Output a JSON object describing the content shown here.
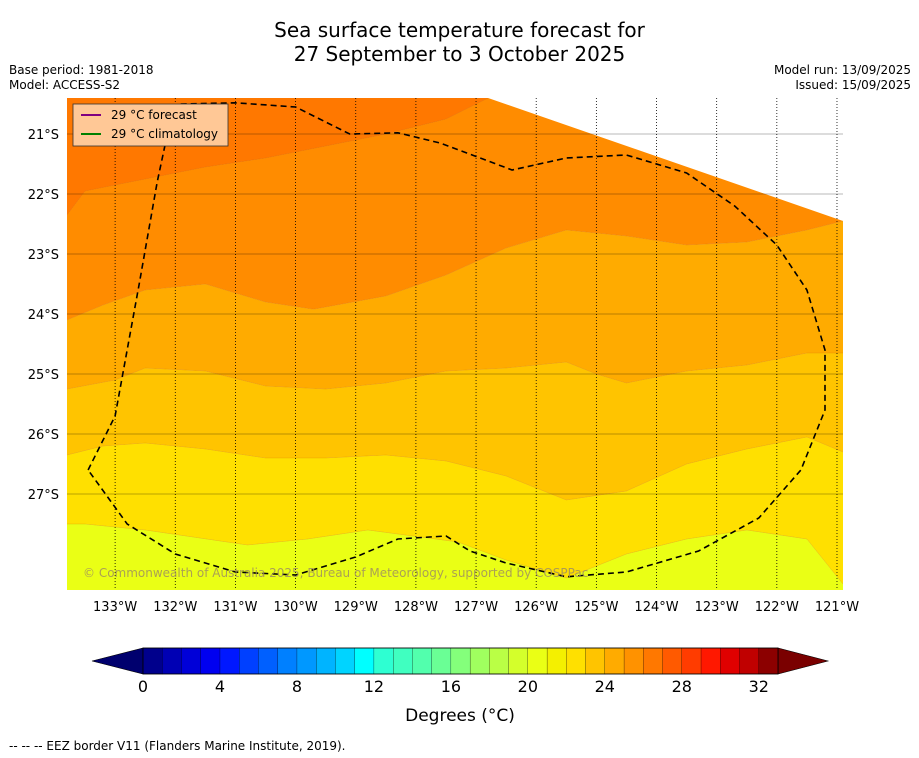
{
  "header": {
    "title_line1": "Sea surface temperature forecast for",
    "title_line2": "27 September to 3 October 2025",
    "base_period": "Base period: 1981-2018",
    "model": "Model: ACCESS-S2",
    "model_run": "Model run: 13/09/2025",
    "issued": "Issued: 15/09/2025"
  },
  "footer": {
    "eez_note": "--  --  -- EEZ border V11 (Flanders Marine Institute, 2019)."
  },
  "copyright": "© Commonwealth of Australia 2025, Bureau of Meteorology, supported by COSPPac",
  "chart_data": {
    "type": "heatmap",
    "variable": "Sea surface temperature forecast",
    "x_ticks": [
      "133°W",
      "132°W",
      "131°W",
      "130°W",
      "129°W",
      "128°W",
      "127°W",
      "126°W",
      "125°W",
      "124°W",
      "123°W",
      "122°W",
      "121°W"
    ],
    "y_ticks": [
      "21°S",
      "22°S",
      "23°S",
      "24°S",
      "25°S",
      "26°S",
      "27°S"
    ],
    "xlim_lon": [
      -133.8,
      -120.9
    ],
    "ylim_lat": [
      -28.6,
      -20.4
    ],
    "legend": {
      "placement": "top-left",
      "items": [
        {
          "label": "29 °C  forecast",
          "color": "#800080"
        },
        {
          "label": "29 °C  climatology",
          "color": "#008000"
        }
      ]
    },
    "colorbar": {
      "label": "Degrees ($^\\circ$C)",
      "label_display": "Degrees (°C)",
      "ticks": [
        "0",
        "4",
        "8",
        "12",
        "16",
        "20",
        "24",
        "28",
        "32"
      ],
      "range": [
        0,
        33
      ],
      "step": 1,
      "extend": "both",
      "colors": [
        "#00008c",
        "#0000b4",
        "#0000d8",
        "#0000f0",
        "#0018ff",
        "#0040ff",
        "#0060ff",
        "#0080ff",
        "#0098ff",
        "#00b4ff",
        "#00d4ff",
        "#00ffff",
        "#2effd2",
        "#40ffc0",
        "#52ffad",
        "#6aff95",
        "#84ff7b",
        "#a0ff5f",
        "#baff45",
        "#d4ff2b",
        "#eaff15",
        "#f4f000",
        "#ffe000",
        "#ffc400",
        "#ffab00",
        "#ff9200",
        "#ff7800",
        "#ff5a00",
        "#ff3c00",
        "#ff1800",
        "#e00000",
        "#c00000",
        "#8c0000"
      ],
      "under_color": "#00006e",
      "over_color": "#7a0000"
    },
    "sst_bands_degC": [
      {
        "range": "21-22",
        "color": "#eaff15"
      },
      {
        "range": "22-23",
        "color": "#ffe000"
      },
      {
        "range": "23-24",
        "color": "#ffc400"
      },
      {
        "range": "24-25",
        "color": "#ffab00"
      },
      {
        "range": "25-26",
        "color": "#ff8c00"
      },
      {
        "range": "26-27",
        "color": "#ff7800"
      }
    ],
    "contour_boundaries": [
      {
        "between": "21-22/22-23",
        "points": [
          [
            -133.8,
            -27.5
          ],
          [
            -133.5,
            -27.5
          ],
          [
            -132.5,
            -27.6
          ],
          [
            -130.8,
            -27.85
          ],
          [
            -129.8,
            -27.75
          ],
          [
            -128.8,
            -27.6
          ],
          [
            -127.3,
            -27.8
          ],
          [
            -126.5,
            -28.1
          ],
          [
            -125.5,
            -28.4
          ],
          [
            -124.5,
            -28.0
          ],
          [
            -123.5,
            -27.75
          ],
          [
            -122.5,
            -27.6
          ],
          [
            -121.5,
            -27.75
          ],
          [
            -120.9,
            -28.5
          ]
        ]
      },
      {
        "between": "22-23/23-24",
        "points": [
          [
            -133.8,
            -26.35
          ],
          [
            -133.2,
            -26.2
          ],
          [
            -132.5,
            -26.15
          ],
          [
            -131.5,
            -26.25
          ],
          [
            -130.5,
            -26.4
          ],
          [
            -129.5,
            -26.4
          ],
          [
            -128.5,
            -26.35
          ],
          [
            -127.5,
            -26.45
          ],
          [
            -126.5,
            -26.7
          ],
          [
            -125.5,
            -27.1
          ],
          [
            -124.5,
            -26.95
          ],
          [
            -123.5,
            -26.5
          ],
          [
            -122.5,
            -26.25
          ],
          [
            -121.5,
            -26.05
          ],
          [
            -120.9,
            -26.3
          ]
        ]
      },
      {
        "between": "23-24/24-25",
        "points": [
          [
            -133.8,
            -25.25
          ],
          [
            -133.0,
            -25.1
          ],
          [
            -132.5,
            -24.9
          ],
          [
            -131.5,
            -24.95
          ],
          [
            -130.5,
            -25.2
          ],
          [
            -129.5,
            -25.25
          ],
          [
            -128.5,
            -25.15
          ],
          [
            -127.5,
            -24.95
          ],
          [
            -126.5,
            -24.9
          ],
          [
            -125.5,
            -24.8
          ],
          [
            -125.0,
            -25.0
          ],
          [
            -124.5,
            -25.15
          ],
          [
            -123.5,
            -24.95
          ],
          [
            -122.5,
            -24.85
          ],
          [
            -121.5,
            -24.65
          ],
          [
            -120.9,
            -24.65
          ]
        ]
      },
      {
        "between": "24-25/25-26",
        "points": [
          [
            -133.8,
            -24.1
          ],
          [
            -133.2,
            -23.85
          ],
          [
            -132.5,
            -23.6
          ],
          [
            -131.5,
            -23.5
          ],
          [
            -130.5,
            -23.8
          ],
          [
            -129.7,
            -23.92
          ],
          [
            -128.5,
            -23.7
          ],
          [
            -127.5,
            -23.35
          ],
          [
            -126.5,
            -22.9
          ],
          [
            -125.5,
            -22.6
          ],
          [
            -124.5,
            -22.7
          ],
          [
            -123.5,
            -22.85
          ],
          [
            -122.5,
            -22.8
          ],
          [
            -121.5,
            -22.6
          ],
          [
            -120.9,
            -22.45
          ]
        ]
      },
      {
        "between": "25-26/26-27",
        "points": [
          [
            -133.8,
            -22.35
          ],
          [
            -133.5,
            -21.95
          ],
          [
            -132.5,
            -21.75
          ],
          [
            -131.5,
            -21.55
          ],
          [
            -130.5,
            -21.4
          ],
          [
            -129.5,
            -21.2
          ],
          [
            -128.5,
            -21.0
          ],
          [
            -127.5,
            -20.75
          ],
          [
            -126.8,
            -20.4
          ]
        ]
      }
    ],
    "eez_border": [
      [
        -133.45,
        -26.6
      ],
      [
        -133.0,
        -25.7
      ],
      [
        -132.6,
        -23.5
      ],
      [
        -132.3,
        -21.8
      ],
      [
        -132.1,
        -20.85
      ],
      [
        -131.9,
        -20.5
      ],
      [
        -131.0,
        -20.48
      ],
      [
        -130.0,
        -20.55
      ],
      [
        -129.1,
        -21.0
      ],
      [
        -128.3,
        -20.98
      ],
      [
        -127.6,
        -21.15
      ],
      [
        -126.8,
        -21.45
      ],
      [
        -126.4,
        -21.6
      ],
      [
        -125.5,
        -21.4
      ],
      [
        -124.5,
        -21.35
      ],
      [
        -123.5,
        -21.65
      ],
      [
        -122.7,
        -22.2
      ],
      [
        -122.0,
        -22.85
      ],
      [
        -121.5,
        -23.6
      ],
      [
        -121.2,
        -24.6
      ],
      [
        -121.2,
        -25.6
      ],
      [
        -121.6,
        -26.6
      ],
      [
        -122.3,
        -27.4
      ],
      [
        -123.3,
        -27.95
      ],
      [
        -124.5,
        -28.3
      ],
      [
        -125.5,
        -28.38
      ],
      [
        -126.5,
        -28.15
      ],
      [
        -127.1,
        -27.95
      ],
      [
        -127.5,
        -27.7
      ],
      [
        -128.3,
        -27.75
      ],
      [
        -129.0,
        -28.05
      ],
      [
        -130.0,
        -28.35
      ],
      [
        -131.0,
        -28.3
      ],
      [
        -132.0,
        -28.0
      ],
      [
        -132.8,
        -27.5
      ],
      [
        -133.45,
        -26.6
      ]
    ]
  }
}
